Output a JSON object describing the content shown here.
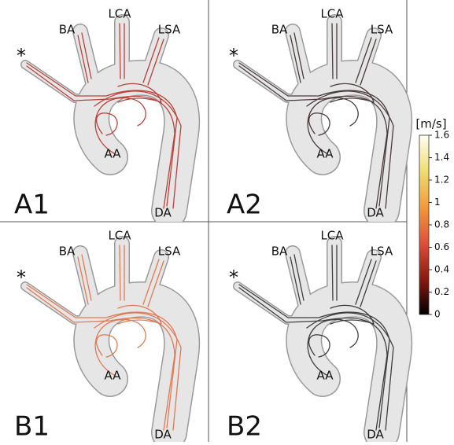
{
  "colorbar": {
    "title": "[m/s]",
    "lim": [
      0,
      1.6
    ],
    "ticks": [
      0,
      0.2,
      0.4,
      0.6,
      0.8,
      1,
      1.2,
      1.4,
      1.6
    ]
  },
  "panels": [
    {
      "label": "A1",
      "inlet": "*",
      "ba": "BA",
      "lca": "LCA",
      "lsa": "LSA",
      "aa": "AA",
      "da": "DA"
    },
    {
      "label": "A2",
      "inlet": "*",
      "ba": "BA",
      "lca": "LCA",
      "lsa": "LSA",
      "aa": "AA",
      "da": "DA"
    },
    {
      "label": "B1",
      "inlet": "*",
      "ba": "BA",
      "lca": "LCA",
      "lsa": "LSA",
      "aa": "AA",
      "da": "DA"
    },
    {
      "label": "B2",
      "inlet": "*",
      "ba": "BA",
      "lca": "LCA",
      "lsa": "LSA",
      "aa": "AA",
      "da": "DA"
    }
  ]
}
